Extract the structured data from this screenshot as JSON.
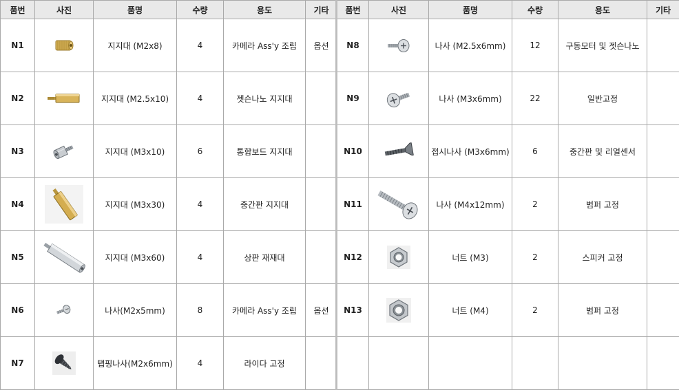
{
  "headers": {
    "code": "품번",
    "photo": "사진",
    "name": "품명",
    "qty": "수량",
    "use": "용도",
    "etc": "기타"
  },
  "left_rows": [
    {
      "code": "N1",
      "icon": "knurled-standoff-icon",
      "name": "지지대 (M2x8)",
      "qty": "4",
      "use": "카메라 Ass'y 조립",
      "etc": "옵션"
    },
    {
      "code": "N2",
      "icon": "brass-standoff-icon",
      "name": "지지대 (M2.5x10)",
      "qty": "4",
      "use": "젯슨나노 지지대",
      "etc": ""
    },
    {
      "code": "N3",
      "icon": "hex-standoff-icon",
      "name": "지지대 (M3x10)",
      "qty": "6",
      "use": "통합보드 지지대",
      "etc": ""
    },
    {
      "code": "N4",
      "icon": "long-brass-standoff-icon",
      "name": "지지대 (M3x30)",
      "qty": "4",
      "use": "중간판 지지대",
      "etc": ""
    },
    {
      "code": "N5",
      "icon": "long-steel-standoff-icon",
      "name": "지지대 (M3x60)",
      "qty": "4",
      "use": "상판 재재대",
      "etc": ""
    },
    {
      "code": "N6",
      "icon": "small-screw-icon",
      "name": "나사(M2x5mm)",
      "qty": "8",
      "use": "카메라 Ass'y 조립",
      "etc": "옵션"
    },
    {
      "code": "N7",
      "icon": "tapping-screw-icon",
      "name": "탭핑나사(M2x6mm)",
      "qty": "4",
      "use": "라이다 고정",
      "etc": ""
    }
  ],
  "right_rows": [
    {
      "code": "N8",
      "icon": "pan-screw-icon",
      "name": "나사 (M2.5x6mm)",
      "qty": "12",
      "use": "구동모터 및 젯슨나노",
      "etc": ""
    },
    {
      "code": "N9",
      "icon": "pan-screw-angled-icon",
      "name": "나사 (M3x6mm)",
      "qty": "22",
      "use": "일반고정",
      "etc": ""
    },
    {
      "code": "N10",
      "icon": "flat-head-screw-icon",
      "name": "접시나사 (M3x6mm)",
      "qty": "6",
      "use": "중간판 및 리얼센서",
      "etc": ""
    },
    {
      "code": "N11",
      "icon": "long-pan-screw-icon",
      "name": "나사 (M4x12mm)",
      "qty": "2",
      "use": "범퍼 고정",
      "etc": ""
    },
    {
      "code": "N12",
      "icon": "hex-nut-icon",
      "name": "너트 (M3)",
      "qty": "2",
      "use": "스피커 고정",
      "etc": ""
    },
    {
      "code": "N13",
      "icon": "hex-nut-icon",
      "name": "너트 (M4)",
      "qty": "2",
      "use": "범퍼 고정",
      "etc": ""
    },
    {
      "code": "",
      "icon": "",
      "name": "",
      "qty": "",
      "use": "",
      "etc": ""
    }
  ]
}
